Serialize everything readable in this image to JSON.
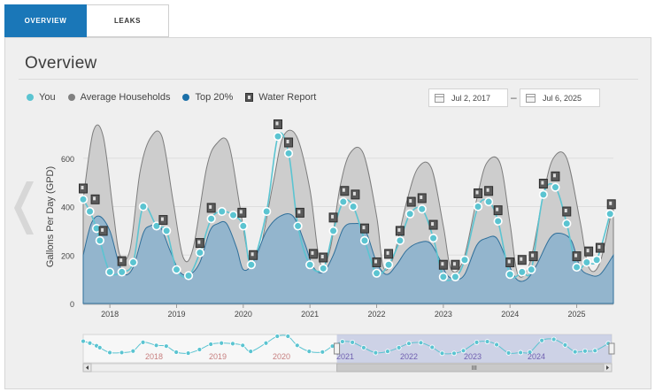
{
  "tabs": [
    {
      "label": "OVERVIEW",
      "active": true
    },
    {
      "label": "LEAKS",
      "active": false
    }
  ],
  "title": "Overview",
  "legend": [
    {
      "label": "You",
      "color": "#5bc4d1"
    },
    {
      "label": "Average Households",
      "color": "#808080"
    },
    {
      "label": "Top 20%",
      "color": "#1a6fa8"
    },
    {
      "label": "Water Report",
      "icon": "water-report-icon"
    }
  ],
  "date_range": {
    "start": "Jul 2, 2017",
    "end": "Jul 6, 2025",
    "separator": "–"
  },
  "chart_data": {
    "type": "area",
    "ylabel": "Gallons Per Day (GPD)",
    "y_ticks": [
      0,
      200,
      400,
      600
    ],
    "ylim": [
      0,
      760
    ],
    "x_range": [
      2017.6,
      2025.55
    ],
    "x_ticks": [
      {
        "label": "2018",
        "x": 2018
      },
      {
        "label": "2019",
        "x": 2019
      },
      {
        "label": "2020",
        "x": 2020
      },
      {
        "label": "2021",
        "x": 2021
      },
      {
        "label": "2022",
        "x": 2022
      },
      {
        "label": "2023",
        "x": 2023
      },
      {
        "label": "2024",
        "x": 2024
      },
      {
        "label": "2025",
        "x": 2025
      }
    ],
    "series": [
      {
        "name": "Average Households",
        "points": [
          [
            2017.6,
            430
          ],
          [
            2017.75,
            710
          ],
          [
            2017.9,
            690
          ],
          [
            2018.05,
            380
          ],
          [
            2018.15,
            200
          ],
          [
            2018.3,
            220
          ],
          [
            2018.45,
            540
          ],
          [
            2018.6,
            680
          ],
          [
            2018.78,
            690
          ],
          [
            2018.95,
            420
          ],
          [
            2019.1,
            190
          ],
          [
            2019.25,
            230
          ],
          [
            2019.45,
            560
          ],
          [
            2019.6,
            660
          ],
          [
            2019.78,
            660
          ],
          [
            2019.95,
            400
          ],
          [
            2020.1,
            170
          ],
          [
            2020.25,
            220
          ],
          [
            2020.45,
            500
          ],
          [
            2020.6,
            690
          ],
          [
            2020.8,
            690
          ],
          [
            2021.0,
            470
          ],
          [
            2021.15,
            170
          ],
          [
            2021.3,
            220
          ],
          [
            2021.45,
            480
          ],
          [
            2021.6,
            620
          ],
          [
            2021.8,
            620
          ],
          [
            2022.0,
            360
          ],
          [
            2022.1,
            150
          ],
          [
            2022.25,
            190
          ],
          [
            2022.45,
            420
          ],
          [
            2022.62,
            560
          ],
          [
            2022.82,
            560
          ],
          [
            2023.0,
            320
          ],
          [
            2023.12,
            140
          ],
          [
            2023.3,
            180
          ],
          [
            2023.5,
            430
          ],
          [
            2023.65,
            580
          ],
          [
            2023.85,
            580
          ],
          [
            2024.0,
            330
          ],
          [
            2024.12,
            120
          ],
          [
            2024.3,
            170
          ],
          [
            2024.5,
            450
          ],
          [
            2024.65,
            600
          ],
          [
            2024.85,
            600
          ],
          [
            2025.05,
            340
          ],
          [
            2025.18,
            150
          ],
          [
            2025.35,
            170
          ],
          [
            2025.55,
            420
          ]
        ]
      },
      {
        "name": "Top 20%",
        "points": [
          [
            2017.6,
            200
          ],
          [
            2017.72,
            330
          ],
          [
            2017.85,
            360
          ],
          [
            2018.0,
            300
          ],
          [
            2018.12,
            180
          ],
          [
            2018.22,
            120
          ],
          [
            2018.35,
            150
          ],
          [
            2018.5,
            290
          ],
          [
            2018.6,
            320
          ],
          [
            2018.75,
            320
          ],
          [
            2018.9,
            220
          ],
          [
            2019.05,
            130
          ],
          [
            2019.2,
            120
          ],
          [
            2019.35,
            170
          ],
          [
            2019.5,
            300
          ],
          [
            2019.62,
            330
          ],
          [
            2019.75,
            330
          ],
          [
            2019.9,
            230
          ],
          [
            2020.0,
            140
          ],
          [
            2020.15,
            170
          ],
          [
            2020.35,
            300
          ],
          [
            2020.55,
            360
          ],
          [
            2020.75,
            360
          ],
          [
            2020.92,
            250
          ],
          [
            2021.05,
            150
          ],
          [
            2021.2,
            130
          ],
          [
            2021.35,
            200
          ],
          [
            2021.5,
            310
          ],
          [
            2021.65,
            330
          ],
          [
            2021.82,
            310
          ],
          [
            2022.0,
            170
          ],
          [
            2022.15,
            120
          ],
          [
            2022.3,
            160
          ],
          [
            2022.45,
            220
          ],
          [
            2022.62,
            250
          ],
          [
            2022.8,
            250
          ],
          [
            2022.95,
            180
          ],
          [
            2023.05,
            120
          ],
          [
            2023.18,
            100
          ],
          [
            2023.32,
            120
          ],
          [
            2023.5,
            240
          ],
          [
            2023.65,
            270
          ],
          [
            2023.8,
            270
          ],
          [
            2023.95,
            180
          ],
          [
            2024.1,
            100
          ],
          [
            2024.25,
            100
          ],
          [
            2024.4,
            160
          ],
          [
            2024.6,
            270
          ],
          [
            2024.75,
            290
          ],
          [
            2024.92,
            260
          ],
          [
            2025.05,
            150
          ],
          [
            2025.18,
            120
          ],
          [
            2025.35,
            120
          ],
          [
            2025.55,
            200
          ]
        ]
      },
      {
        "name": "You",
        "points": [
          [
            2017.6,
            430
          ],
          [
            2017.7,
            380
          ],
          [
            2017.8,
            310
          ],
          [
            2017.85,
            260
          ],
          [
            2018.0,
            130
          ],
          [
            2018.18,
            130
          ],
          [
            2018.35,
            170
          ],
          [
            2018.5,
            400
          ],
          [
            2018.7,
            320
          ],
          [
            2018.85,
            300
          ],
          [
            2019.0,
            140
          ],
          [
            2019.18,
            115
          ],
          [
            2019.35,
            210
          ],
          [
            2019.52,
            350
          ],
          [
            2019.68,
            380
          ],
          [
            2019.85,
            365
          ],
          [
            2020.0,
            320
          ],
          [
            2020.12,
            160
          ],
          [
            2020.35,
            380
          ],
          [
            2020.52,
            690
          ],
          [
            2020.68,
            620
          ],
          [
            2020.82,
            320
          ],
          [
            2021.0,
            160
          ],
          [
            2021.2,
            145
          ],
          [
            2021.35,
            300
          ],
          [
            2021.5,
            420
          ],
          [
            2021.65,
            400
          ],
          [
            2021.82,
            260
          ],
          [
            2022.0,
            125
          ],
          [
            2022.18,
            160
          ],
          [
            2022.35,
            260
          ],
          [
            2022.5,
            370
          ],
          [
            2022.68,
            390
          ],
          [
            2022.85,
            270
          ],
          [
            2023.0,
            110
          ],
          [
            2023.18,
            110
          ],
          [
            2023.32,
            180
          ],
          [
            2023.52,
            400
          ],
          [
            2023.68,
            420
          ],
          [
            2023.82,
            340
          ],
          [
            2024.0,
            120
          ],
          [
            2024.18,
            130
          ],
          [
            2024.32,
            140
          ],
          [
            2024.5,
            450
          ],
          [
            2024.68,
            480
          ],
          [
            2024.85,
            330
          ],
          [
            2025.0,
            150
          ],
          [
            2025.15,
            170
          ],
          [
            2025.3,
            180
          ],
          [
            2025.5,
            370
          ]
        ]
      }
    ],
    "water_reports": [
      [
        2017.6,
        475
      ],
      [
        2017.78,
        430
      ],
      [
        2017.9,
        300
      ],
      [
        2018.18,
        175
      ],
      [
        2018.8,
        345
      ],
      [
        2019.35,
        250
      ],
      [
        2019.52,
        395
      ],
      [
        2019.98,
        375
      ],
      [
        2020.15,
        200
      ],
      [
        2020.52,
        740
      ],
      [
        2020.68,
        665
      ],
      [
        2020.85,
        375
      ],
      [
        2021.05,
        205
      ],
      [
        2021.2,
        190
      ],
      [
        2021.35,
        355
      ],
      [
        2021.52,
        465
      ],
      [
        2021.68,
        450
      ],
      [
        2021.82,
        310
      ],
      [
        2022.0,
        170
      ],
      [
        2022.18,
        205
      ],
      [
        2022.35,
        300
      ],
      [
        2022.52,
        420
      ],
      [
        2022.68,
        435
      ],
      [
        2022.85,
        325
      ],
      [
        2023.0,
        160
      ],
      [
        2023.18,
        160
      ],
      [
        2023.52,
        455
      ],
      [
        2023.68,
        465
      ],
      [
        2023.82,
        385
      ],
      [
        2024.0,
        170
      ],
      [
        2024.18,
        180
      ],
      [
        2024.35,
        195
      ],
      [
        2024.5,
        495
      ],
      [
        2024.68,
        525
      ],
      [
        2024.85,
        380
      ],
      [
        2025.0,
        195
      ],
      [
        2025.18,
        215
      ],
      [
        2025.35,
        230
      ],
      [
        2025.52,
        410
      ]
    ],
    "navigator": {
      "labels": [
        "2018",
        "2019",
        "2020",
        "2021",
        "2022",
        "2023",
        "2024"
      ],
      "selected": [
        0.48,
        1.0
      ]
    }
  }
}
